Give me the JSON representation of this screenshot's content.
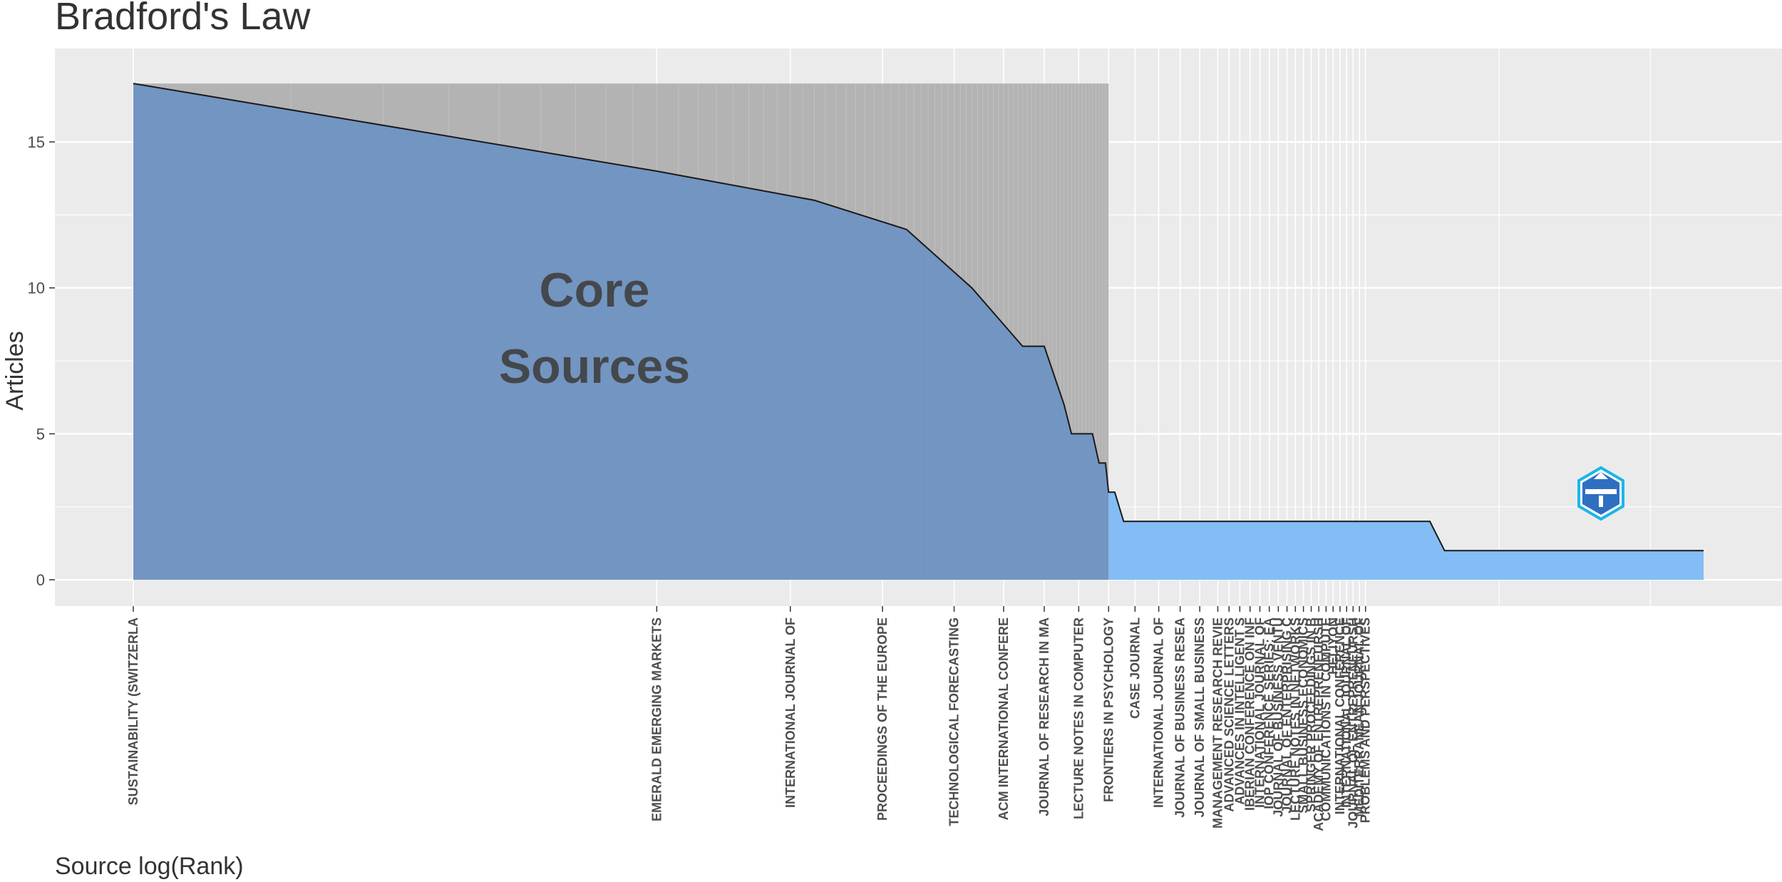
{
  "chart_data": {
    "type": "area",
    "title": "Bradford's Law",
    "xlabel": "Source log(Rank)",
    "ylabel": "Articles",
    "x_scale": "log",
    "ylim": [
      -0.9,
      18.2
    ],
    "y_ticks": [
      0,
      5,
      10,
      15
    ],
    "grid": true,
    "core_zone_label": [
      "Core",
      "Sources"
    ],
    "core_zone_rank_end": 73,
    "core_zone_height": 17,
    "max_rank": 1000,
    "step_series": [
      {
        "rank": 1,
        "articles": 17
      },
      {
        "rank": 10,
        "articles": 14
      },
      {
        "rank": 20,
        "articles": 13
      },
      {
        "rank": 30,
        "articles": 12
      },
      {
        "rank": 40,
        "articles": 10
      },
      {
        "rank": 50,
        "articles": 8
      },
      {
        "rank": 55,
        "articles": 8
      },
      {
        "rank": 60,
        "articles": 6
      },
      {
        "rank": 62,
        "articles": 5
      },
      {
        "rank": 68,
        "articles": 5
      },
      {
        "rank": 70,
        "articles": 4
      },
      {
        "rank": 72,
        "articles": 4
      },
      {
        "rank": 73,
        "articles": 3
      },
      {
        "rank": 75,
        "articles": 3
      },
      {
        "rank": 78,
        "articles": 2
      },
      {
        "rank": 80,
        "articles": 2
      },
      {
        "rank": 300,
        "articles": 2
      },
      {
        "rank": 320,
        "articles": 1
      },
      {
        "rank": 1000,
        "articles": 1
      }
    ],
    "source_labels": [
      {
        "label": "SUSTAINABILITY (SWITZERLA",
        "rank": 1
      },
      {
        "label": "EMERALD EMERGING MARKETS",
        "rank": 10
      },
      {
        "label": "INTERNATIONAL JOURNAL OF",
        "rank": 18
      },
      {
        "label": "PROCEEDINGS OF THE EUROPE",
        "rank": 27
      },
      {
        "label": "TECHNOLOGICAL FORECASTING",
        "rank": 37
      },
      {
        "label": "ACM INTERNATIONAL CONFERE",
        "rank": 46
      },
      {
        "label": "JOURNAL OF RESEARCH IN MA",
        "rank": 55
      },
      {
        "label": "LECTURE NOTES IN COMPUTER",
        "rank": 64
      },
      {
        "label": "FRONTIERS IN PSYCHOLOGY",
        "rank": 73
      },
      {
        "label": "CASE JOURNAL",
        "rank": 82
      },
      {
        "label": "INTERNATIONAL JOURNAL OF",
        "rank": 91
      },
      {
        "label": "JOURNAL OF BUSINESS RESEA",
        "rank": 100
      },
      {
        "label": "JOURNAL OF SMALL BUSINESS",
        "rank": 109
      },
      {
        "label": "MANAGEMENT RESEARCH REVIE",
        "rank": 118
      },
      {
        "label": "ADVANCED SCIENCE LETTERS",
        "rank": 124
      },
      {
        "label": "ADVANCES IN INTELLIGENT S",
        "rank": 130
      },
      {
        "label": "IBERIAN CONFERENCE ON INF",
        "rank": 136
      },
      {
        "label": "INTERNATIONAL JOURNAL OF",
        "rank": 142
      },
      {
        "label": "IOP CONFERENCE SERIES: EA",
        "rank": 148
      },
      {
        "label": "JOURNAL OF BUSINESS VENTU",
        "rank": 154
      },
      {
        "label": "JOURNAL OF ENTERPRISING C",
        "rank": 160
      },
      {
        "label": "LECTURE NOTES IN NETWORKS",
        "rank": 166
      },
      {
        "label": "SMALL BUSINESS ECONOMICS",
        "rank": 172
      },
      {
        "label": "SPRINGER PROCEEDINGS IN B",
        "rank": 178
      },
      {
        "label": "ACADEMY OF ENTREPRENEURSH",
        "rank": 184
      },
      {
        "label": "COMMUNICATIONS IN COMPUTE",
        "rank": 190
      },
      {
        "label": "HELIYON",
        "rank": 196
      },
      {
        "label": "INTERNATIONAL CONFERENCE",
        "rank": 202
      },
      {
        "label": "INTERNATIONAL JOURNAL OF",
        "rank": 208
      },
      {
        "label": "JOURNAL OF ENTREPRENEURSH",
        "rank": 214
      },
      {
        "label": "MEDITERRANEAN JOURNAL OF",
        "rank": 220
      },
      {
        "label": "PROBLEMS AND PERSPECTIVES",
        "rank": 226
      }
    ],
    "colors": {
      "panel": "#ebebeb",
      "grid": "#ffffff",
      "core_fill": "#b3b3b3",
      "area_core": "#7094c3",
      "area_rest": "#84bdf5",
      "line": "#1a1a1a"
    }
  }
}
